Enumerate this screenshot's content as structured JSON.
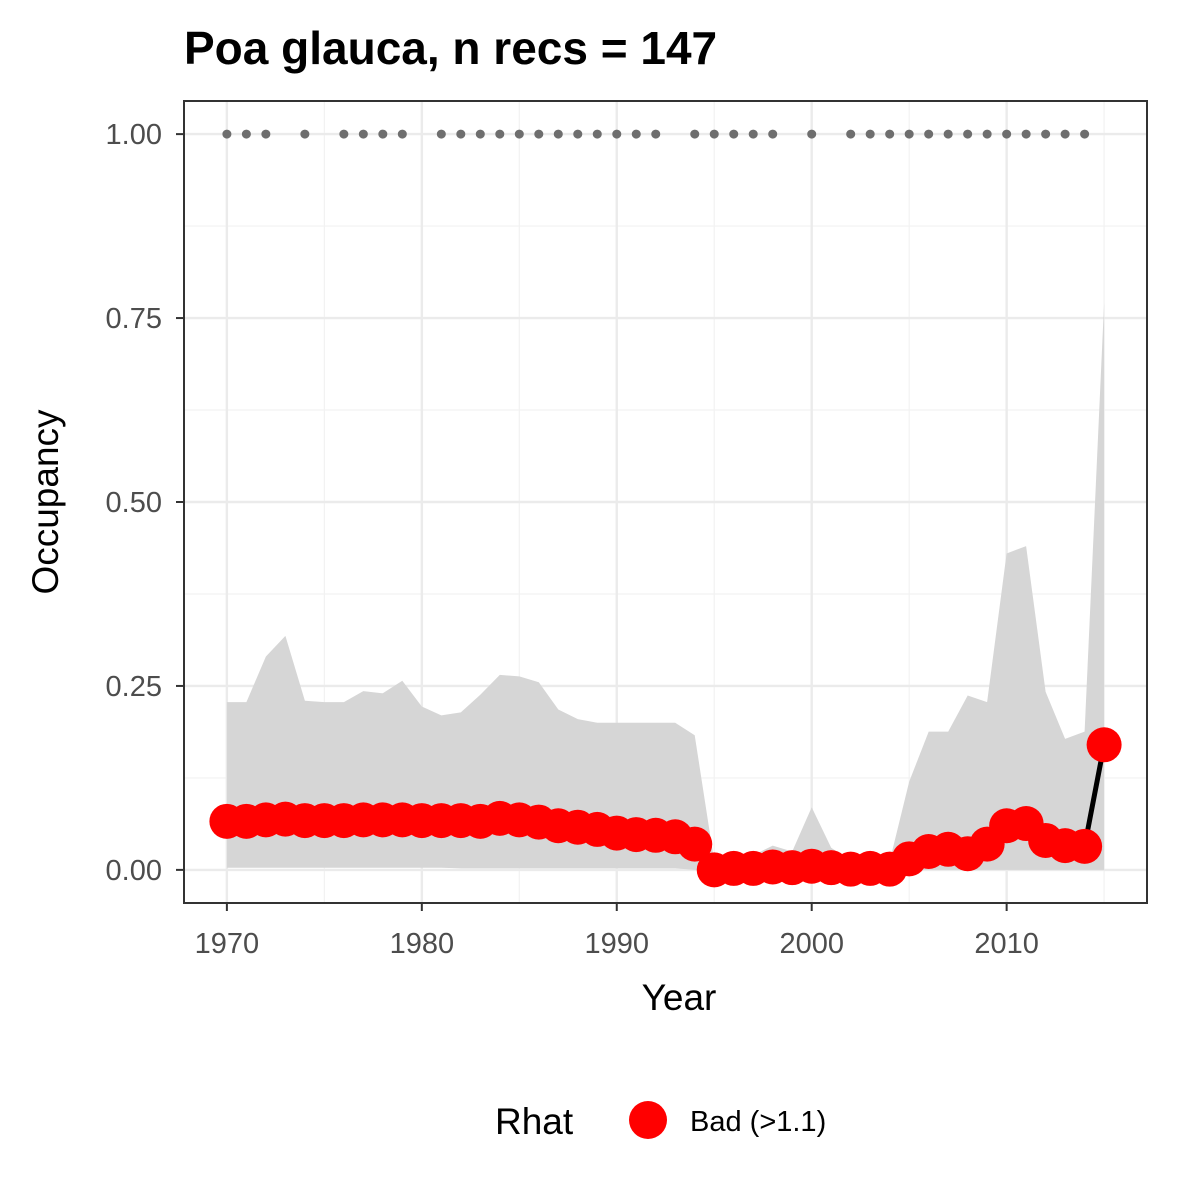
{
  "chart_data": {
    "type": "line",
    "title": "Poa glauca, n recs = 147",
    "xlabel": "Year",
    "ylabel": "Occupancy",
    "xlim": [
      1967.8,
      2017.2
    ],
    "ylim": [
      -0.045,
      1.045
    ],
    "xticks": [
      1970,
      1980,
      1990,
      2000,
      2010
    ],
    "xtick_labels": [
      "1970",
      "1980",
      "1990",
      "2000",
      "2010"
    ],
    "yticks": [
      0,
      0.25,
      0.5,
      0.75,
      1.0
    ],
    "ytick_labels": [
      "0.00",
      "0.25",
      "0.50",
      "0.75",
      "1.00"
    ],
    "grid": true,
    "colors": {
      "points": "#ff0000",
      "line": "#000000",
      "ribbon": "#d6d6d6",
      "records": "#6e6e6e"
    },
    "series": [
      {
        "name": "Bad (>1.1)",
        "x": [
          1970,
          1971,
          1972,
          1973,
          1974,
          1975,
          1976,
          1977,
          1978,
          1979,
          1980,
          1981,
          1982,
          1983,
          1984,
          1985,
          1986,
          1987,
          1988,
          1989,
          1990,
          1991,
          1992,
          1993,
          1994,
          1995,
          1996,
          1997,
          1998,
          1999,
          2000,
          2001,
          2002,
          2003,
          2004,
          2005,
          2006,
          2007,
          2008,
          2009,
          2010,
          2011,
          2012,
          2013,
          2014,
          2015
        ],
        "values": [
          0.066,
          0.066,
          0.068,
          0.069,
          0.067,
          0.067,
          0.067,
          0.068,
          0.068,
          0.068,
          0.067,
          0.067,
          0.067,
          0.066,
          0.07,
          0.068,
          0.065,
          0.06,
          0.058,
          0.055,
          0.05,
          0.048,
          0.047,
          0.045,
          0.035,
          0.0,
          0.002,
          0.002,
          0.004,
          0.003,
          0.005,
          0.003,
          0.001,
          0.002,
          0.001,
          0.015,
          0.025,
          0.028,
          0.022,
          0.035,
          0.06,
          0.063,
          0.04,
          0.033,
          0.032,
          0.17
        ],
        "lower": [
          0.003,
          0.003,
          0.003,
          0.003,
          0.003,
          0.003,
          0.003,
          0.003,
          0.003,
          0.003,
          0.003,
          0.003,
          0.002,
          0.002,
          0.002,
          0.002,
          0.002,
          0.002,
          0.002,
          0.002,
          0.002,
          0.002,
          0.002,
          0.002,
          0.0,
          0.0,
          0.0,
          0.0,
          0.0,
          0.0,
          0.0,
          0.0,
          0.0,
          0.0,
          0.0,
          0.0,
          0.0,
          0.0,
          0.0,
          0.0,
          0.0,
          0.0,
          0.0,
          0.0,
          0.0,
          0.0
        ],
        "upper": [
          0.228,
          0.228,
          0.29,
          0.318,
          0.23,
          0.228,
          0.228,
          0.243,
          0.24,
          0.257,
          0.222,
          0.21,
          0.214,
          0.238,
          0.265,
          0.263,
          0.255,
          0.218,
          0.205,
          0.2,
          0.2,
          0.2,
          0.2,
          0.2,
          0.183,
          0.012,
          0.018,
          0.02,
          0.033,
          0.025,
          0.085,
          0.03,
          0.012,
          0.01,
          0.012,
          0.12,
          0.188,
          0.188,
          0.237,
          0.228,
          0.43,
          0.44,
          0.242,
          0.178,
          0.188,
          0.77
        ]
      }
    ],
    "record_years": [
      1970,
      1971,
      1972,
      1974,
      1976,
      1977,
      1978,
      1979,
      1981,
      1982,
      1983,
      1984,
      1985,
      1986,
      1987,
      1988,
      1989,
      1990,
      1991,
      1992,
      1994,
      1995,
      1996,
      1997,
      1998,
      2000,
      2002,
      2003,
      2004,
      2005,
      2006,
      2007,
      2008,
      2009,
      2010,
      2011,
      2012,
      2013,
      2014
    ],
    "record_level": 1.0,
    "legend": {
      "title": "Rhat",
      "label": "Bad (>1.1)",
      "position": "bottom"
    }
  }
}
